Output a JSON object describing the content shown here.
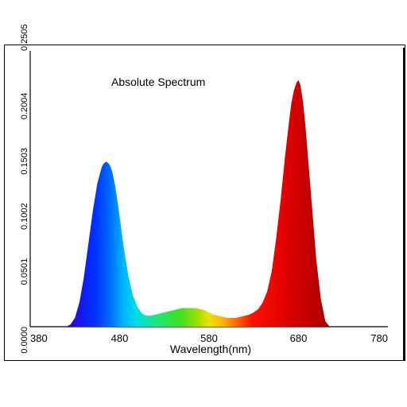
{
  "chart_data": {
    "type": "area",
    "title": "Absolute Spectrum",
    "xlabel": "Wavelength(nm)",
    "ylabel": "",
    "xlim": [
      380,
      780
    ],
    "ylim": [
      0,
      0.2505
    ],
    "x_ticks": [
      "380",
      "480",
      "580",
      "680",
      "780"
    ],
    "y_ticks": [
      "0.0000",
      "0.0501",
      "0.1002",
      "0.1503",
      "0.2004",
      "0.2505"
    ],
    "grid": false,
    "fill": "wavelength-colored gradient (blue → cyan → green → yellow → orange → red)",
    "series": [
      {
        "x": [
          420,
          425,
          430,
          435,
          440,
          445,
          450,
          455,
          460,
          462,
          465,
          468,
          470,
          472,
          475,
          478,
          480,
          485,
          490,
          495,
          500,
          505,
          510,
          515,
          520,
          525,
          530,
          535,
          540,
          545,
          550,
          555,
          560,
          565,
          570,
          575,
          580,
          585,
          590,
          595,
          600,
          605,
          610,
          615,
          620,
          625,
          630,
          635,
          640,
          645,
          650,
          655,
          660,
          665,
          670,
          672,
          675,
          678,
          680,
          682,
          685,
          688,
          690,
          695,
          700,
          705,
          710,
          715
        ],
        "y": [
          0.0,
          0.002,
          0.008,
          0.022,
          0.045,
          0.075,
          0.105,
          0.13,
          0.145,
          0.148,
          0.15,
          0.148,
          0.145,
          0.14,
          0.128,
          0.112,
          0.1,
          0.07,
          0.045,
          0.028,
          0.018,
          0.012,
          0.01,
          0.01,
          0.011,
          0.012,
          0.013,
          0.014,
          0.015,
          0.016,
          0.017,
          0.017,
          0.017,
          0.017,
          0.016,
          0.015,
          0.013,
          0.011,
          0.01,
          0.009,
          0.008,
          0.008,
          0.008,
          0.009,
          0.01,
          0.011,
          0.013,
          0.016,
          0.022,
          0.032,
          0.05,
          0.08,
          0.115,
          0.155,
          0.19,
          0.203,
          0.215,
          0.222,
          0.224,
          0.22,
          0.205,
          0.18,
          0.16,
          0.11,
          0.06,
          0.025,
          0.005,
          0.0
        ]
      }
    ]
  }
}
